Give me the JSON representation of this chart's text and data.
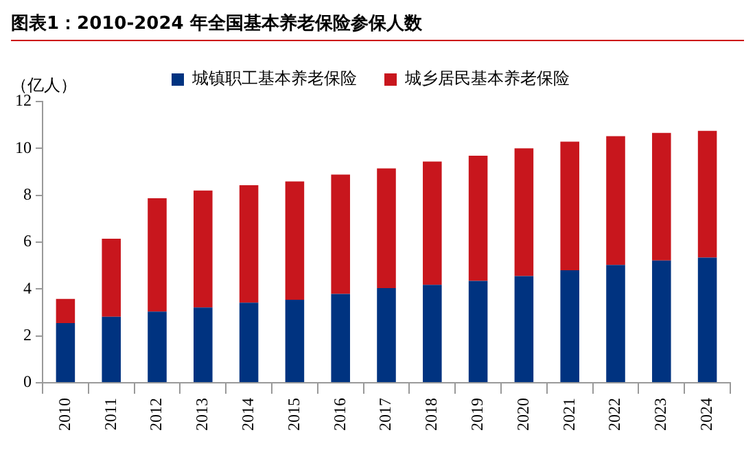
{
  "chart_data": {
    "type": "bar",
    "title": "图表1：2010-2024 年全国基本养老保险参保人数",
    "ylabel": "（亿人）",
    "categories": [
      "2010",
      "2011",
      "2012",
      "2013",
      "2014",
      "2015",
      "2016",
      "2017",
      "2018",
      "2019",
      "2020",
      "2021",
      "2022",
      "2023",
      "2024"
    ],
    "series": [
      {
        "name": "城镇职工基本养老保险",
        "color": "#003380",
        "values": [
          2.55,
          2.82,
          3.04,
          3.21,
          3.42,
          3.54,
          3.79,
          4.04,
          4.18,
          4.35,
          4.55,
          4.8,
          5.03,
          5.22,
          5.34
        ]
      },
      {
        "name": "城乡居民基本养老保险",
        "color": "#c8161d",
        "values": [
          1.03,
          3.33,
          4.83,
          4.99,
          5.01,
          5.05,
          5.09,
          5.11,
          5.26,
          5.34,
          5.45,
          5.49,
          5.49,
          5.44,
          5.41
        ]
      }
    ],
    "stacked": true,
    "ylim": [
      0,
      12
    ],
    "yticks": [
      0,
      2,
      4,
      6,
      8,
      10,
      12
    ],
    "grid": false,
    "legend": "top"
  }
}
